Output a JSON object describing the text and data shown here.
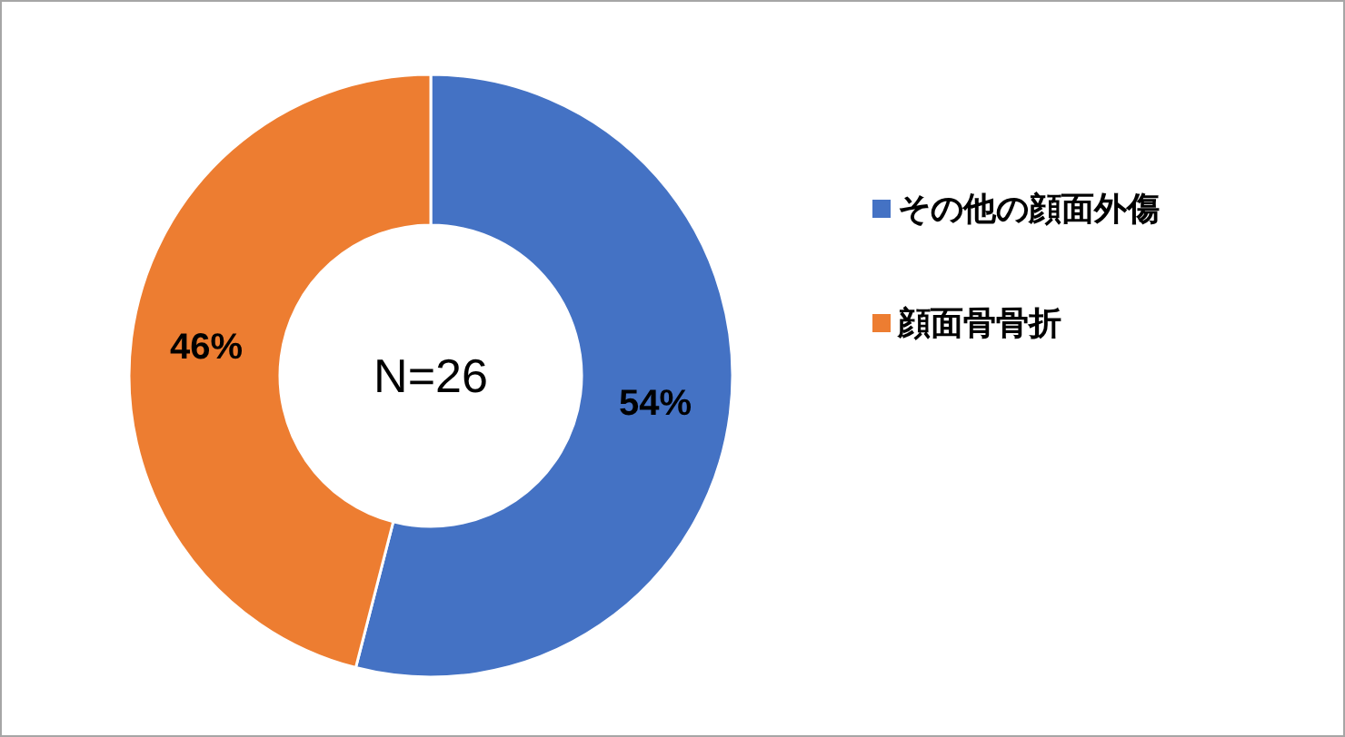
{
  "chart_data": {
    "type": "donut",
    "categories": [
      "その他の顔面外傷",
      "顔面骨骨折"
    ],
    "values": [
      54,
      46
    ],
    "colors": [
      "#4472c4",
      "#ed7d31"
    ],
    "value_labels": [
      "54%",
      "46%"
    ],
    "legend": "right",
    "annotations": [
      "N=26"
    ]
  }
}
